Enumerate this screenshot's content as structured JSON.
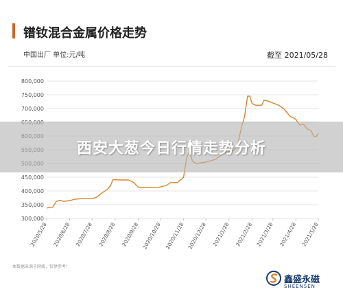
{
  "header": {
    "title": "镨钕混合金属价格走势",
    "subtitle": "中国出厂  单位:元/吨",
    "date_note": "截至 2021/05/28"
  },
  "footer": {
    "source": "本数据来源于网络，仅供参考！",
    "brand_cn": "鑫盛永磁",
    "brand_en": "SHEENSEN"
  },
  "banner": {
    "text": "西安大葱今日行情走势分析"
  },
  "colors": {
    "line": "#d9852a",
    "grid": "#e6e6e6",
    "axis_text": "#555555",
    "title_bar": "#c9662a",
    "brand": "#1a3b6e"
  },
  "chart_data": {
    "type": "line",
    "title": "镨钕混合金属价格走势",
    "ylim": [
      300000,
      800000
    ],
    "yticks": [
      "300,000",
      "350,000",
      "400,000",
      "450,000",
      "500,000",
      "550,000",
      "600,000",
      "650,000",
      "700,000",
      "750,000",
      "800,000"
    ],
    "x_start": "2020/5/28",
    "x_end": "2021/5/28",
    "xticks": [
      "2020/5/28",
      "2020/6/28",
      "2020/7/28",
      "2020/8/28",
      "2020/9/28",
      "2020/10/28",
      "2020/11/28",
      "2020/12/28",
      "2021/1/28",
      "2021/2/28",
      "2021/3/28",
      "2021/4/28",
      "2021/5/28"
    ],
    "grid": true,
    "series": [
      {
        "values": [
          [
            "2020/5/28",
            338000
          ],
          [
            "2020/6/5",
            341000
          ],
          [
            "2020/6/10",
            362000
          ],
          [
            "2020/6/15",
            366000
          ],
          [
            "2020/6/20",
            362000
          ],
          [
            "2020/6/28",
            365000
          ],
          [
            "2020/7/5",
            370000
          ],
          [
            "2020/7/15",
            372000
          ],
          [
            "2020/7/28",
            372000
          ],
          [
            "2020/8/3",
            377000
          ],
          [
            "2020/8/10",
            392000
          ],
          [
            "2020/8/18",
            407000
          ],
          [
            "2020/8/22",
            420000
          ],
          [
            "2020/8/25",
            441000
          ],
          [
            "2020/9/5",
            440000
          ],
          [
            "2020/9/15",
            440000
          ],
          [
            "2020/9/22",
            431000
          ],
          [
            "2020/9/28",
            414000
          ],
          [
            "2020/10/10",
            412000
          ],
          [
            "2020/10/25",
            413000
          ],
          [
            "2020/11/5",
            420000
          ],
          [
            "2020/11/10",
            430000
          ],
          [
            "2020/11/20",
            431000
          ],
          [
            "2020/11/28",
            450000
          ],
          [
            "2020/12/2",
            520000
          ],
          [
            "2020/12/6",
            545000
          ],
          [
            "2020/12/10",
            508000
          ],
          [
            "2020/12/15",
            500000
          ],
          [
            "2020/12/28",
            505000
          ],
          [
            "2021/1/10",
            515000
          ],
          [
            "2021/1/15",
            525000
          ],
          [
            "2021/1/20",
            540000
          ],
          [
            "2021/1/28",
            543000
          ],
          [
            "2021/2/3",
            548000
          ],
          [
            "2021/2/8",
            560000
          ],
          [
            "2021/2/14",
            635000
          ],
          [
            "2021/2/18",
            672000
          ],
          [
            "2021/2/22",
            745000
          ],
          [
            "2021/2/25",
            745000
          ],
          [
            "2021/2/28",
            718000
          ],
          [
            "2021/3/5",
            712000
          ],
          [
            "2021/3/13",
            712000
          ],
          [
            "2021/3/16",
            730000
          ],
          [
            "2021/3/22",
            727000
          ],
          [
            "2021/3/28",
            720000
          ],
          [
            "2021/4/5",
            712000
          ],
          [
            "2021/4/12",
            698000
          ],
          [
            "2021/4/20",
            672000
          ],
          [
            "2021/4/25",
            665000
          ],
          [
            "2021/4/28",
            660000
          ],
          [
            "2021/5/3",
            640000
          ],
          [
            "2021/5/8",
            643000
          ],
          [
            "2021/5/13",
            626000
          ],
          [
            "2021/5/18",
            620000
          ],
          [
            "2021/5/22",
            599000
          ],
          [
            "2021/5/25",
            597000
          ],
          [
            "2021/5/28",
            610000
          ]
        ]
      }
    ]
  }
}
